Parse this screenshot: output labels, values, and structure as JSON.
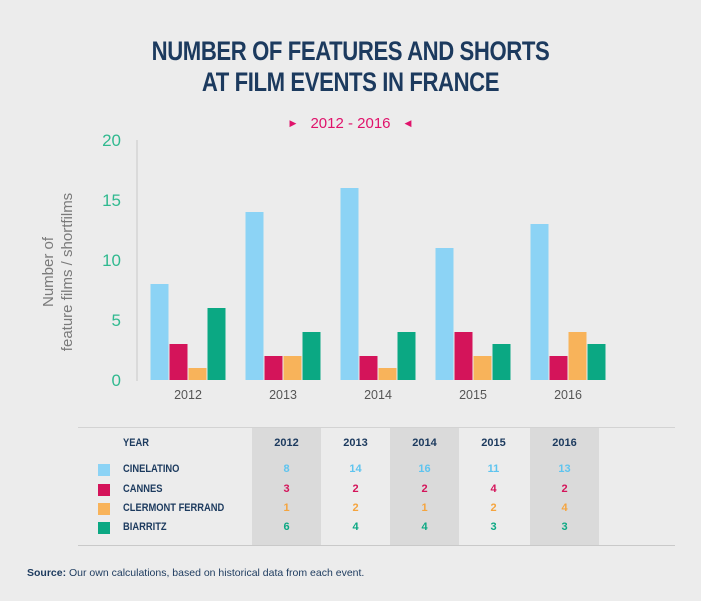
{
  "title_line1": "NUMBER OF FEATURES AND SHORTS",
  "title_line2": "AT FILM EVENTS IN FRANCE",
  "subtitle": "2012 - 2016",
  "ylabel_line1": "Number of",
  "ylabel_line2": "feature films / shortfilms",
  "colors": {
    "cinelatino": "#8cd3f5",
    "cannes": "#d4145a",
    "clermont": "#f8b35a",
    "biarritz": "#0ba883",
    "axis_text": "#30b98f",
    "title": "#1c3a5e",
    "accent": "#e0136b"
  },
  "chart_data": {
    "type": "bar",
    "title": "NUMBER OF FEATURES AND SHORTS AT FILM EVENTS IN FRANCE",
    "subtitle": "2012 - 2016",
    "xlabel": "",
    "ylabel": "Number of feature films / shortfilms",
    "ylim": [
      0,
      20
    ],
    "yticks": [
      0,
      5,
      10,
      15,
      20
    ],
    "categories": [
      "2012",
      "2013",
      "2014",
      "2015",
      "2016"
    ],
    "series": [
      {
        "name": "CINELATINO",
        "color": "#8cd3f5",
        "values": [
          8,
          14,
          16,
          11,
          13
        ]
      },
      {
        "name": "CANNES",
        "color": "#d4145a",
        "values": [
          3,
          2,
          2,
          4,
          2
        ]
      },
      {
        "name": "CLERMONT FERRAND",
        "color": "#f8b35a",
        "values": [
          1,
          2,
          1,
          2,
          4
        ]
      },
      {
        "name": "BIARRITZ",
        "color": "#0ba883",
        "values": [
          6,
          4,
          4,
          3,
          3
        ]
      }
    ],
    "grid": false
  },
  "table": {
    "year_label": "YEAR"
  },
  "source_label": "Source:",
  "source_text": " Our own calculations, based on historical data from each event."
}
